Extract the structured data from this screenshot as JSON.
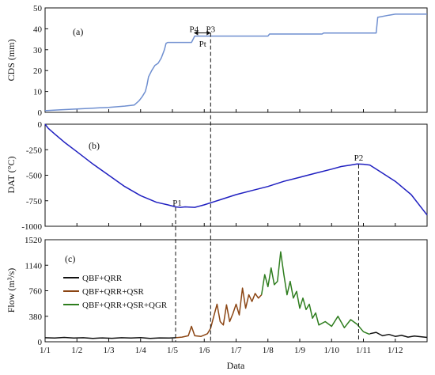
{
  "chart_data": [
    {
      "type": "line",
      "panel": "(a)",
      "ylabel": "CDS (mm)",
      "ylim": [
        0,
        50
      ],
      "yticks": [
        0,
        10,
        20,
        30,
        40,
        50
      ],
      "xlim": [
        0,
        12
      ],
      "series": [
        {
          "color": "#6f8fd0",
          "x": [
            0.0,
            0.5,
            1.0,
            1.5,
            2.0,
            2.5,
            2.8,
            2.95,
            3.05,
            3.15,
            3.2,
            3.25,
            3.35,
            3.45,
            3.55,
            3.65,
            3.75,
            3.8,
            3.85,
            3.9,
            4.0,
            4.6,
            4.7,
            7.0,
            7.05,
            8.7,
            8.75,
            10.4,
            10.45,
            10.8,
            11.0,
            12.0
          ],
          "y": [
            0.8,
            1.2,
            1.6,
            2.0,
            2.4,
            3.0,
            3.5,
            5.5,
            7.5,
            10.0,
            13.0,
            17.0,
            20.0,
            22.5,
            23.5,
            26.0,
            30.0,
            33.0,
            33.5,
            33.5,
            33.5,
            33.5,
            36.5,
            36.5,
            37.5,
            37.5,
            38.0,
            38.0,
            45.5,
            46.5,
            47.0,
            47.0
          ]
        }
      ],
      "annotations": [
        {
          "text": "P4",
          "x": 4.68,
          "y": 38.5
        },
        {
          "text": "P3",
          "x": 5.2,
          "y": 38.5
        },
        {
          "text": "Pt",
          "x": 4.95,
          "y": 31.5
        }
      ]
    },
    {
      "type": "line",
      "panel": "(b)",
      "ylabel": "DAT (°C)",
      "ylim": [
        -1000,
        0
      ],
      "yticks": [
        -1000,
        -750,
        -500,
        -250,
        0
      ],
      "xlim": [
        0,
        12
      ],
      "series": [
        {
          "color": "#1f1fc0",
          "x": [
            0.0,
            0.1,
            0.3,
            0.6,
            1.0,
            1.5,
            2.0,
            2.5,
            3.0,
            3.5,
            3.85,
            4.1,
            4.25,
            4.4,
            4.7,
            5.0,
            5.5,
            6.0,
            6.5,
            7.0,
            7.5,
            8.0,
            8.5,
            9.0,
            9.3,
            9.6,
            9.8,
            10.0,
            10.2,
            10.5,
            11.0,
            11.5,
            12.0
          ],
          "y": [
            0,
            -40,
            -95,
            -175,
            -270,
            -390,
            -500,
            -610,
            -700,
            -765,
            -790,
            -810,
            -815,
            -810,
            -815,
            -790,
            -740,
            -690,
            -650,
            -610,
            -560,
            -520,
            -480,
            -440,
            -415,
            -400,
            -390,
            -392,
            -400,
            -460,
            -560,
            -690,
            -890
          ]
        }
      ],
      "annotations": [
        {
          "text": "P1",
          "x": 4.15,
          "y": -800
        },
        {
          "text": "P2",
          "x": 9.85,
          "y": -355
        }
      ]
    },
    {
      "type": "line",
      "panel": "(c)",
      "ylabel": "Flow (m³/s)",
      "xlabel": "Data",
      "ylim": [
        0,
        1520
      ],
      "yticks": [
        0,
        380,
        760,
        1140,
        1520
      ],
      "categories": [
        "1/1",
        "1/2",
        "1/3",
        "1/4",
        "1/5",
        "1/6",
        "1/7",
        "1/8",
        "1/9",
        "1/10",
        "1/11",
        "1/12"
      ],
      "xlim": [
        0,
        12
      ],
      "series": [
        {
          "name": "QBF+QRR",
          "color": "#111111",
          "x": [
            0.0,
            0.3,
            0.6,
            0.9,
            1.2,
            1.5,
            1.8,
            2.1,
            2.4,
            2.7,
            3.0,
            3.3,
            3.6,
            3.9,
            4.1
          ],
          "y": [
            60,
            55,
            65,
            55,
            60,
            50,
            58,
            52,
            60,
            55,
            62,
            50,
            58,
            55,
            60
          ]
        },
        {
          "name": "QBF+QRR+QSR",
          "color": "#8b4513",
          "x": [
            4.1,
            4.3,
            4.5,
            4.6,
            4.7,
            4.9,
            5.1,
            5.2,
            5.3,
            5.4,
            5.5,
            5.6,
            5.7,
            5.8,
            5.9,
            6.0,
            6.1,
            6.2,
            6.3,
            6.4,
            6.5,
            6.6,
            6.7,
            6.8
          ],
          "y": [
            60,
            70,
            90,
            230,
            90,
            80,
            120,
            200,
            380,
            560,
            300,
            250,
            550,
            300,
            420,
            560,
            400,
            800,
            500,
            700,
            600,
            720,
            650,
            700
          ]
        },
        {
          "name": "QBF+QRR+QSR+QGR",
          "color": "#2e7d1e",
          "x": [
            6.8,
            6.9,
            7.0,
            7.1,
            7.2,
            7.3,
            7.4,
            7.5,
            7.6,
            7.7,
            7.8,
            7.9,
            8.0,
            8.1,
            8.2,
            8.3,
            8.4,
            8.5,
            8.6,
            8.8,
            9.0,
            9.2,
            9.4,
            9.6,
            9.8,
            10.0,
            10.2
          ],
          "y": [
            700,
            1000,
            820,
            1100,
            850,
            900,
            1340,
            1000,
            700,
            900,
            650,
            750,
            500,
            650,
            480,
            560,
            350,
            430,
            250,
            300,
            230,
            380,
            210,
            330,
            260,
            150,
            110
          ]
        },
        {
          "name": "",
          "color": "#111111",
          "x": [
            10.2,
            10.4,
            10.6,
            10.8,
            11.0,
            11.2,
            11.4,
            11.6,
            11.8,
            12.0
          ],
          "y": [
            120,
            140,
            90,
            110,
            80,
            95,
            70,
            85,
            75,
            65
          ]
        }
      ],
      "legend": {
        "placement": "middle-left",
        "entries": [
          "QBF+QRR",
          "QBF+QRR+QSR",
          "QBF+QRR+QSR+QGR"
        ]
      }
    }
  ],
  "guides": {
    "vline_1": {
      "x": 4.1,
      "from_panel": "(b)",
      "to_panel": "(c)",
      "dashed": true
    },
    "vline_2": {
      "x": 5.2,
      "from_panel": "(a)",
      "to_panel": "(c)",
      "dashed": true
    },
    "vline_3": {
      "x": 9.85,
      "from_panel": "(b)",
      "to_panel": "(c)",
      "dashed": true
    },
    "pt_arrow": {
      "x_start": 4.68,
      "x_end": 5.2,
      "y": 38.0
    }
  }
}
